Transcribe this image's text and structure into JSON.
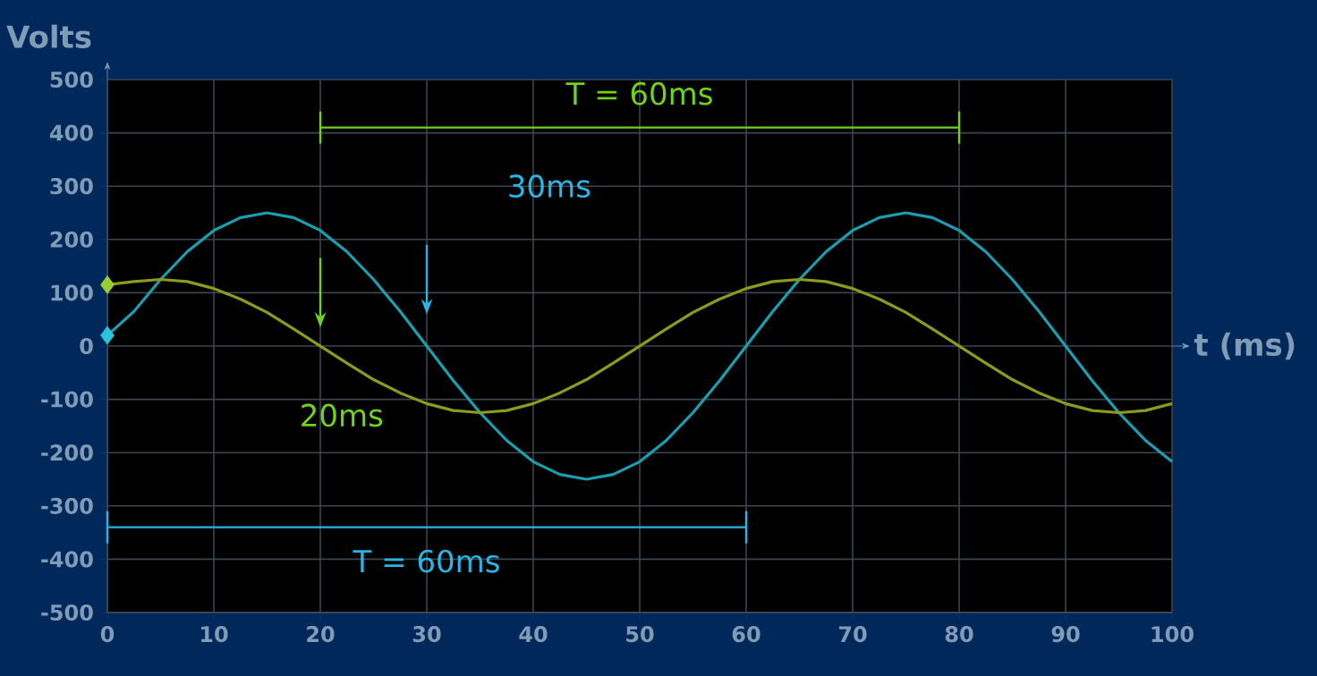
{
  "chart_data": {
    "type": "line",
    "ylabel": "Volts",
    "xlabel": "t (ms)",
    "x": [
      0,
      2.5,
      5,
      7.5,
      10,
      12.5,
      15,
      17.5,
      20,
      22.5,
      25,
      27.5,
      30,
      32.5,
      35,
      37.5,
      40,
      42.5,
      45,
      47.5,
      50,
      52.5,
      55,
      57.5,
      60,
      62.5,
      65,
      67.5,
      70,
      72.5,
      75,
      77.5,
      80,
      82.5,
      85,
      87.5,
      90,
      92.5,
      95,
      97.5,
      100
    ],
    "series": [
      {
        "color": "#1a9fb0",
        "values": [
          20,
          65,
          125,
          177,
          217,
          241,
          250,
          241,
          217,
          177,
          125,
          65,
          0,
          -65,
          -125,
          -177,
          -217,
          -241,
          -250,
          -241,
          -217,
          -177,
          -125,
          -65,
          0,
          65,
          125,
          177,
          217,
          241,
          250,
          241,
          217,
          177,
          125,
          65,
          0,
          -65,
          -125,
          -177,
          -217
        ]
      },
      {
        "color": "#8c9b1c",
        "values": [
          115,
          121,
          125,
          121,
          108,
          88,
          63,
          32,
          0,
          -32,
          -63,
          -88,
          -108,
          -121,
          -125,
          -121,
          -108,
          -88,
          -63,
          -32,
          0,
          32,
          63,
          88,
          108,
          121,
          125,
          121,
          108,
          88,
          63,
          32,
          0,
          -32,
          -63,
          -88,
          -108,
          -121,
          -125,
          -121,
          -108
        ]
      },
      {
        "type": "scatter",
        "marker": "diamond",
        "color": "#2bc4e0",
        "x": [
          0
        ],
        "values": [
          20
        ]
      },
      {
        "type": "scatter",
        "marker": "diamond",
        "color": "#9acd32",
        "x": [
          0
        ],
        "values": [
          115
        ]
      },
      {
        "type": "line",
        "color": "#6fd21e",
        "x": [
          20,
          80
        ],
        "values": [
          410,
          410
        ]
      },
      {
        "type": "line",
        "color": "#29b6e6",
        "x": [
          0,
          60
        ],
        "values": [
          -340,
          -340
        ]
      }
    ],
    "xlim": [
      0,
      100
    ],
    "xticks": [
      0,
      10,
      20,
      30,
      40,
      50,
      60,
      70,
      80,
      90,
      100
    ],
    "ylim": [
      -500,
      500
    ],
    "yticks": [
      -500,
      -400,
      -300,
      -200,
      -100,
      0,
      100,
      200,
      300,
      400,
      500
    ],
    "grid": true,
    "annotations": [
      {
        "text": "T = 60ms",
        "x": 50,
        "y": 410
      },
      "30ms",
      "20ms",
      {
        "text": "T = 60ms",
        "x": 30,
        "y": -340
      }
    ]
  }
}
